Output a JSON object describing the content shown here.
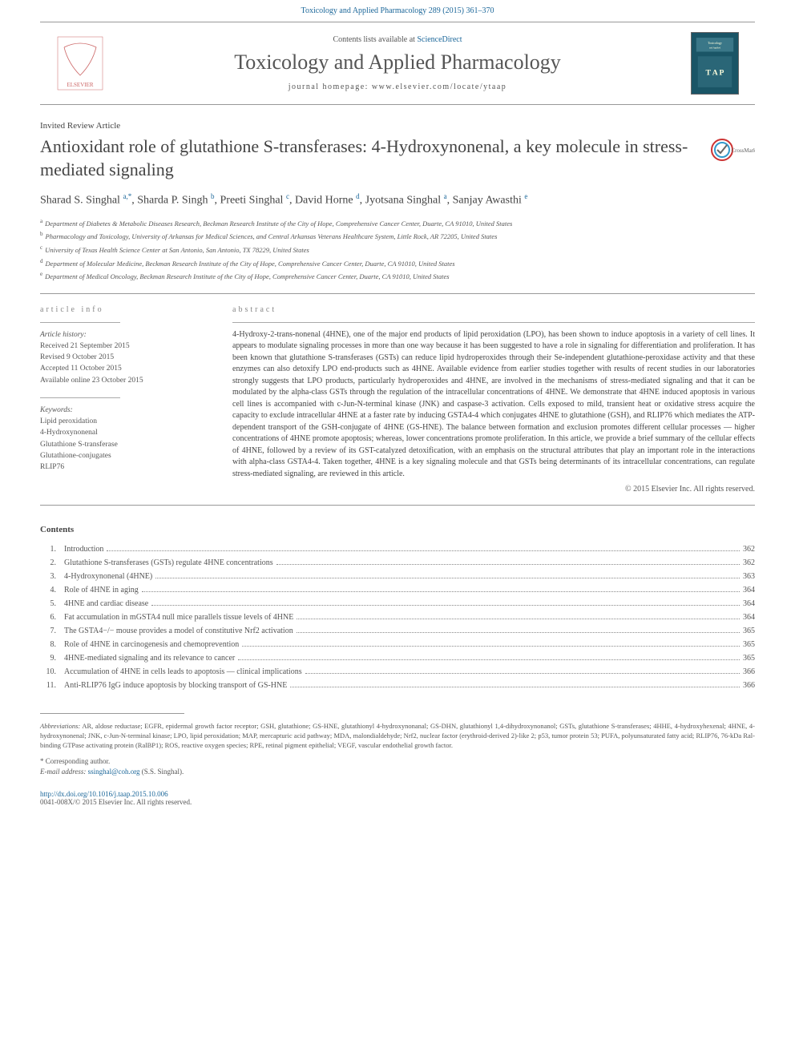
{
  "header": {
    "citation": "Toxicology and Applied Pharmacology 289 (2015) 361–370",
    "contents_prefix": "Contents lists available at ",
    "contents_link": "ScienceDirect",
    "journal_name": "Toxicology and Applied Pharmacology",
    "homepage_prefix": "journal homepage: ",
    "homepage_url": "www.elsevier.com/locate/ytaap"
  },
  "article": {
    "type": "Invited Review Article",
    "title": "Antioxidant role of glutathione S-transferases: 4-Hydroxynonenal, a key molecule in stress-mediated signaling",
    "crossmark_label": "CrossMark"
  },
  "authors": {
    "list": "Sharad S. Singhal",
    "sup1": "a,*",
    "a2": ", Sharda P. Singh",
    "sup2": "b",
    "a3": ", Preeti Singhal",
    "sup3": "c",
    "a4": ", David Horne",
    "sup4": "d",
    "a5": ", Jyotsana Singhal",
    "sup5": "a",
    "a6": ", Sanjay Awasthi",
    "sup6": "e"
  },
  "affiliations": [
    {
      "sup": "a",
      "text": "Department of Diabetes & Metabolic Diseases Research, Beckman Research Institute of the City of Hope, Comprehensive Cancer Center, Duarte, CA 91010, United States"
    },
    {
      "sup": "b",
      "text": "Pharmacology and Toxicology, University of Arkansas for Medical Sciences, and Central Arkansas Veterans Healthcare System, Little Rock, AR 72205, United States"
    },
    {
      "sup": "c",
      "text": "University of Texas Health Science Center at San Antonio, San Antonio, TX 78229, United States"
    },
    {
      "sup": "d",
      "text": "Department of Molecular Medicine, Beckman Research Institute of the City of Hope, Comprehensive Cancer Center, Duarte, CA 91010, United States"
    },
    {
      "sup": "e",
      "text": "Department of Medical Oncology, Beckman Research Institute of the City of Hope, Comprehensive Cancer Center, Duarte, CA 91010, United States"
    }
  ],
  "article_info": {
    "header": "article info",
    "history_label": "Article history:",
    "received": "Received 21 September 2015",
    "revised": "Revised 9 October 2015",
    "accepted": "Accepted 11 October 2015",
    "online": "Available online 23 October 2015",
    "keywords_label": "Keywords:",
    "keywords": [
      "Lipid peroxidation",
      "4-Hydroxynonenal",
      "Glutathione S-transferase",
      "Glutathione-conjugates",
      "RLIP76"
    ]
  },
  "abstract": {
    "header": "abstract",
    "text": "4-Hydroxy-2-trans-nonenal (4HNE), one of the major end products of lipid peroxidation (LPO), has been shown to induce apoptosis in a variety of cell lines. It appears to modulate signaling processes in more than one way because it has been suggested to have a role in signaling for differentiation and proliferation. It has been known that glutathione S-transferases (GSTs) can reduce lipid hydroperoxides through their Se-independent glutathione-peroxidase activity and that these enzymes can also detoxify LPO end-products such as 4HNE. Available evidence from earlier studies together with results of recent studies in our laboratories strongly suggests that LPO products, particularly hydroperoxides and 4HNE, are involved in the mechanisms of stress-mediated signaling and that it can be modulated by the alpha-class GSTs through the regulation of the intracellular concentrations of 4HNE. We demonstrate that 4HNE induced apoptosis in various cell lines is accompanied with c-Jun-N-terminal kinase (JNK) and caspase-3 activation. Cells exposed to mild, transient heat or oxidative stress acquire the capacity to exclude intracellular 4HNE at a faster rate by inducing GSTA4-4 which conjugates 4HNE to glutathione (GSH), and RLIP76 which mediates the ATP-dependent transport of the GSH-conjugate of 4HNE (GS-HNE). The balance between formation and exclusion promotes different cellular processes — higher concentrations of 4HNE promote apoptosis; whereas, lower concentrations promote proliferation. In this article, we provide a brief summary of the cellular effects of 4HNE, followed by a review of its GST-catalyzed detoxification, with an emphasis on the structural attributes that play an important role in the interactions with alpha-class GSTA4-4. Taken together, 4HNE is a key signaling molecule and that GSTs being determinants of its intracellular concentrations, can regulate stress-mediated signaling, are reviewed in this article.",
    "copyright": "© 2015 Elsevier Inc. All rights reserved."
  },
  "contents": {
    "header": "Contents",
    "items": [
      {
        "num": "1.",
        "label": "Introduction",
        "page": "362"
      },
      {
        "num": "2.",
        "label": "Glutathione S-transferases (GSTs) regulate 4HNE concentrations",
        "page": "362"
      },
      {
        "num": "3.",
        "label": "4-Hydroxynonenal (4HNE)",
        "page": "363"
      },
      {
        "num": "4.",
        "label": "Role of 4HNE in aging",
        "page": "364"
      },
      {
        "num": "5.",
        "label": "4HNE and cardiac disease",
        "page": "364"
      },
      {
        "num": "6.",
        "label": "Fat accumulation in mGSTA4 null mice parallels tissue levels of 4HNE",
        "page": "364"
      },
      {
        "num": "7.",
        "label": "The GSTA4−/− mouse provides a model of constitutive Nrf2 activation",
        "page": "365"
      },
      {
        "num": "8.",
        "label": "Role of 4HNE in carcinogenesis and chemoprevention",
        "page": "365"
      },
      {
        "num": "9.",
        "label": "4HNE-mediated signaling and its relevance to cancer",
        "page": "365"
      },
      {
        "num": "10.",
        "label": "Accumulation of 4HNE in cells leads to apoptosis — clinical implications",
        "page": "366"
      },
      {
        "num": "11.",
        "label": "Anti-RLIP76 IgG induce apoptosis by blocking transport of GS-HNE",
        "page": "366"
      }
    ]
  },
  "footer": {
    "abbrev_label": "Abbreviations:",
    "abbrev_text": " AR, aldose reductase; EGFR, epidermal growth factor receptor; GSH, glutathione; GS-HNE, glutathionyl 4-hydroxynonanal; GS-DHN, glutathionyl 1,4-dihydroxynonanol; GSTs, glutathione S-transferases; 4HHE, 4-hydroxyhexenal; 4HNE, 4-hydroxynonenal; JNK, c-Jun-N-terminal kinase; LPO, lipid peroxidation; MAP, mercapturic acid pathway; MDA, malondialdehyde; Nrf2, nuclear factor (erythroid-derived 2)-like 2; p53, tumor protein 53; PUFA, polyunsaturated fatty acid; RLIP76, 76-kDa Ral-binding GTPase activating protein (RalBP1); ROS, reactive oxygen species; RPE, retinal pigment epithelial; VEGF, vascular endothelial growth factor.",
    "corresponding": "* Corresponding author.",
    "email_label": "E-mail address:",
    "email": "ssinghal@coh.org",
    "email_name": " (S.S. Singhal).",
    "doi": "http://dx.doi.org/10.1016/j.taap.2015.10.006",
    "issn_line": "0041-008X/© 2015 Elsevier Inc. All rights reserved."
  },
  "colors": {
    "link": "#1a6699",
    "text": "#444",
    "muted": "#555",
    "border": "#999"
  }
}
